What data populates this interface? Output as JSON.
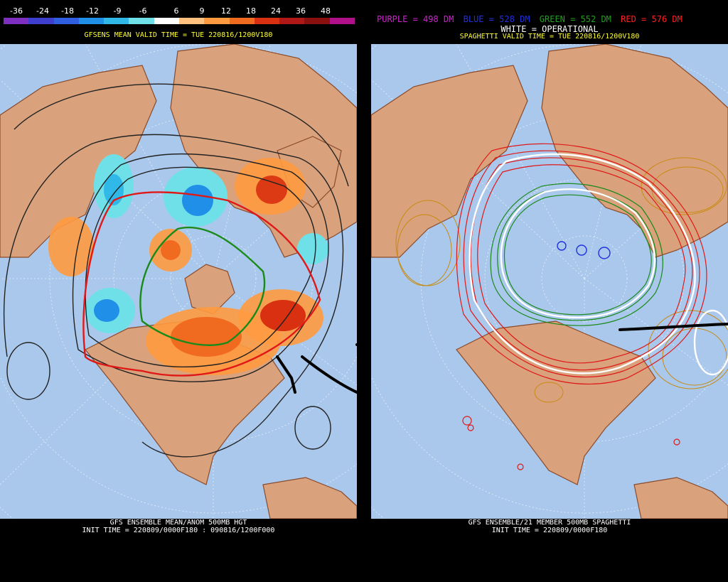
{
  "colorbar": {
    "ticks": [
      "-36",
      "-24",
      "-18",
      "-12",
      "-9",
      "-6",
      "6",
      "9",
      "12",
      "18",
      "24",
      "36",
      "48"
    ],
    "colors": [
      "#7f2fbf",
      "#3f3fcf",
      "#2f5fe0",
      "#1f8fe8",
      "#2fb8e8",
      "#6fe0e8",
      "#ffffff",
      "#ffc080",
      "#ff9a40",
      "#f06a20",
      "#d83010",
      "#b01818",
      "#8a1010",
      "#b0108a"
    ]
  },
  "left": {
    "title": "GFSENS MEAN VALID TIME = TUE 220816/1200V180",
    "footer_line1": "GFS ENSEMBLE MEAN/ANOM 500MB HGT",
    "footer_line2": "INIT TIME = 220809/0000F180 : 090816/1200F000"
  },
  "right": {
    "legend": [
      {
        "text": "PURPLE = 498 DM",
        "color": "#d020d0"
      },
      {
        "text": "BLUE = 528 DM",
        "color": "#2030e0"
      },
      {
        "text": "GREEN = 552 DM",
        "color": "#20a020"
      },
      {
        "text": "RED = 576 DM",
        "color": "#ff2020"
      }
    ],
    "white_label": "WHITE = OPERATIONAL",
    "title": "SPAGHETTI VALID TIME = TUE 220816/1200V180",
    "footer_line1": "GFS ENSEMBLE/21 MEMBER 500MB SPAGHETTI",
    "footer_line2": "INIT TIME = 220809/0000F180"
  },
  "colors": {
    "ocean": "#a9c8ec",
    "land": "#d9a27c",
    "border": "#8a4a2a",
    "mean_contour": "#222222",
    "red_contour": "#e01818",
    "green_contour": "#1a8a1a",
    "white_contour": "#ffffff",
    "orange_spaghetti": "#c88a10"
  }
}
